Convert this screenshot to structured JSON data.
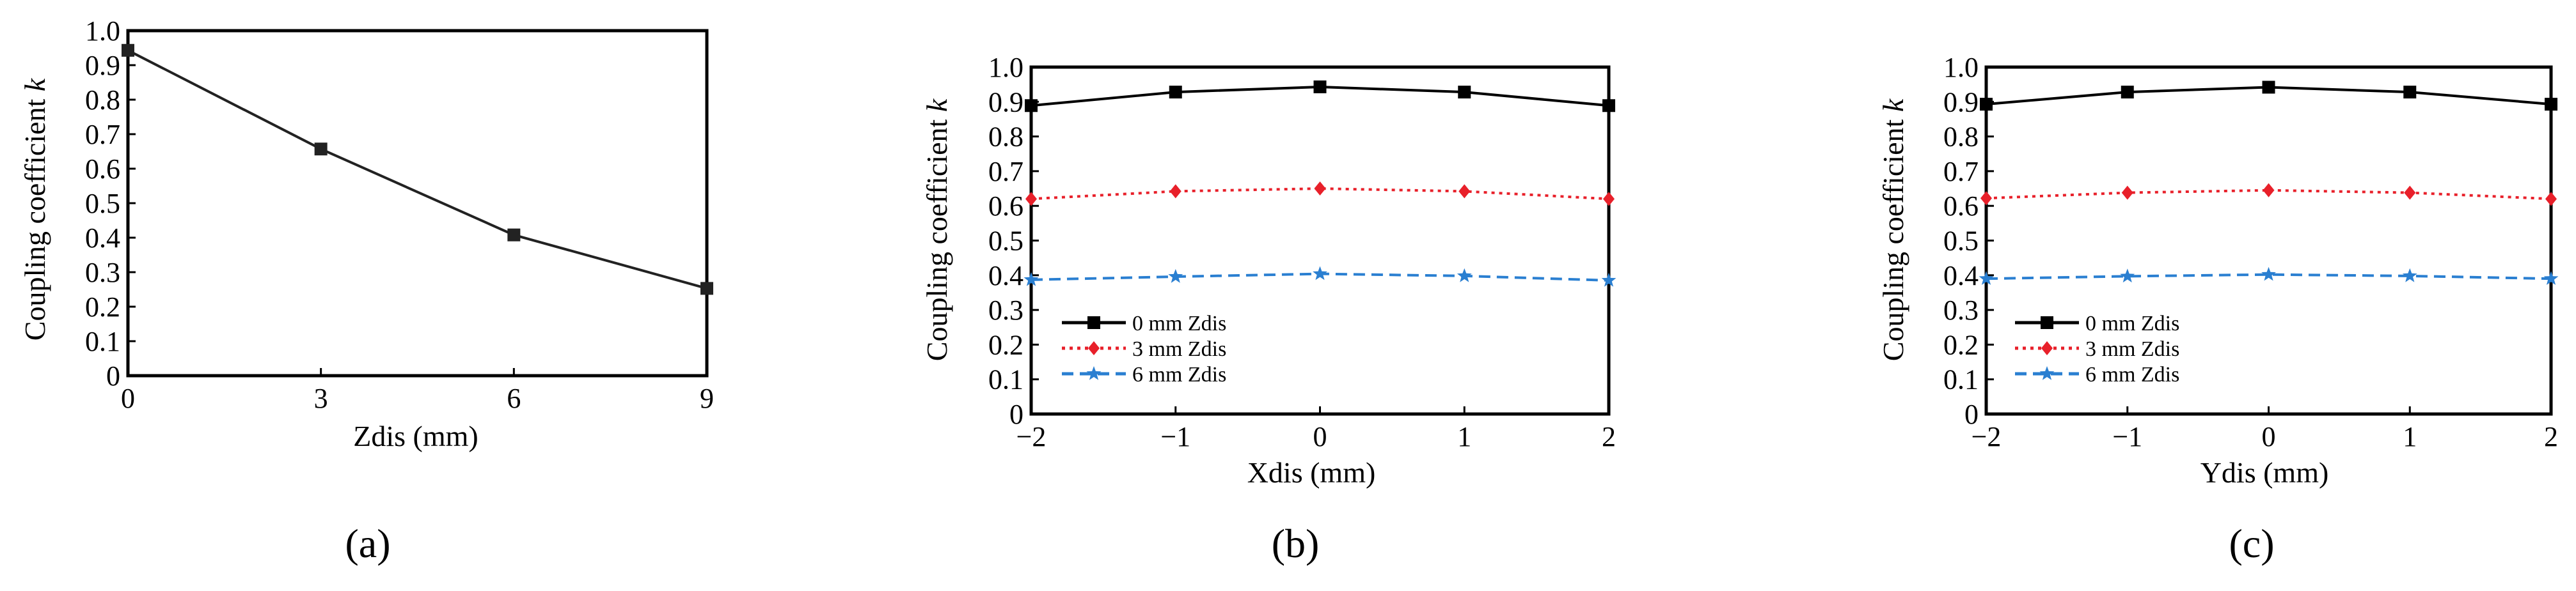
{
  "chart_data": [
    {
      "id": "a",
      "type": "line",
      "panel_label": "(a)",
      "xlabel": "Zdis (mm)",
      "ylabel_main": "Coupling coefficient ",
      "ylabel_var": "k",
      "xlim": [
        0,
        9
      ],
      "ylim": [
        0,
        1.0
      ],
      "x_ticks": [
        0,
        3,
        6,
        9
      ],
      "x_tick_labels": [
        "0",
        "3",
        "6",
        "9"
      ],
      "y_ticks": [
        0,
        0.1,
        0.2,
        0.3,
        0.4,
        0.5,
        0.6,
        0.7,
        0.8,
        0.9,
        1.0
      ],
      "y_tick_labels": [
        "0",
        "0.1",
        "0.2",
        "0.3",
        "0.4",
        "0.5",
        "0.6",
        "0.7",
        "0.8",
        "0.9",
        "1.0"
      ],
      "series": [
        {
          "name": "",
          "color": "#222222",
          "dash": "solid",
          "marker": "square",
          "x": [
            0,
            3,
            6,
            9
          ],
          "values": [
            0.943,
            0.657,
            0.408,
            0.253
          ]
        }
      ]
    },
    {
      "id": "b",
      "type": "line",
      "panel_label": "(b)",
      "xlabel": "Xdis (mm)",
      "ylabel_main": "Coupling coefficient ",
      "ylabel_var": "k",
      "xlim": [
        -2,
        2
      ],
      "ylim": [
        0,
        1.0
      ],
      "x_ticks": [
        -2,
        -1,
        0,
        1,
        2
      ],
      "x_tick_labels": [
        "−2",
        "−1",
        "0",
        "1",
        "2"
      ],
      "y_ticks": [
        0,
        0.1,
        0.2,
        0.3,
        0.4,
        0.5,
        0.6,
        0.7,
        0.8,
        0.9,
        1.0
      ],
      "y_tick_labels": [
        "0",
        "0.1",
        "0.2",
        "0.3",
        "0.4",
        "0.5",
        "0.6",
        "0.7",
        "0.8",
        "0.9",
        "1.0"
      ],
      "legend": "lower-left",
      "series": [
        {
          "name": "0 mm Zdis",
          "color": "#000000",
          "dash": "solid",
          "marker": "square",
          "x": [
            -2,
            -1,
            0,
            1,
            2
          ],
          "values": [
            0.889,
            0.928,
            0.943,
            0.928,
            0.889
          ]
        },
        {
          "name": "3 mm Zdis",
          "color": "#e8202a",
          "dash": "dot",
          "marker": "diamond",
          "x": [
            -2,
            -1,
            0,
            1,
            2
          ],
          "values": [
            0.62,
            0.642,
            0.65,
            0.642,
            0.62
          ]
        },
        {
          "name": "6 mm Zdis",
          "color": "#2a7fd1",
          "dash": "dash",
          "marker": "star",
          "x": [
            -2,
            -1,
            0,
            1,
            2
          ],
          "values": [
            0.387,
            0.396,
            0.404,
            0.398,
            0.385
          ]
        }
      ]
    },
    {
      "id": "c",
      "type": "line",
      "panel_label": "(c)",
      "xlabel": "Ydis (mm)",
      "ylabel_main": "Coupling coefficient ",
      "ylabel_var": "k",
      "xlim": [
        -2,
        2
      ],
      "ylim": [
        0,
        1.0
      ],
      "x_ticks": [
        -2,
        -1,
        0,
        1,
        2
      ],
      "x_tick_labels": [
        "−2",
        "−1",
        "0",
        "1",
        "2"
      ],
      "y_ticks": [
        0,
        0.1,
        0.2,
        0.3,
        0.4,
        0.5,
        0.6,
        0.7,
        0.8,
        0.9,
        1.0
      ],
      "y_tick_labels": [
        "0",
        "0.1",
        "0.2",
        "0.3",
        "0.4",
        "0.5",
        "0.6",
        "0.7",
        "0.8",
        "0.9",
        "1.0"
      ],
      "legend": "lower-left",
      "series": [
        {
          "name": "0 mm Zdis",
          "color": "#000000",
          "dash": "solid",
          "marker": "square",
          "x": [
            -2,
            -1,
            0,
            1,
            2
          ],
          "values": [
            0.893,
            0.928,
            0.942,
            0.928,
            0.893
          ]
        },
        {
          "name": "3 mm Zdis",
          "color": "#e8202a",
          "dash": "dot",
          "marker": "diamond",
          "x": [
            -2,
            -1,
            0,
            1,
            2
          ],
          "values": [
            0.622,
            0.638,
            0.645,
            0.638,
            0.62
          ]
        },
        {
          "name": "6 mm Zdis",
          "color": "#2a7fd1",
          "dash": "dash",
          "marker": "star",
          "x": [
            -2,
            -1,
            0,
            1,
            2
          ],
          "values": [
            0.39,
            0.397,
            0.402,
            0.398,
            0.39
          ]
        }
      ]
    }
  ]
}
